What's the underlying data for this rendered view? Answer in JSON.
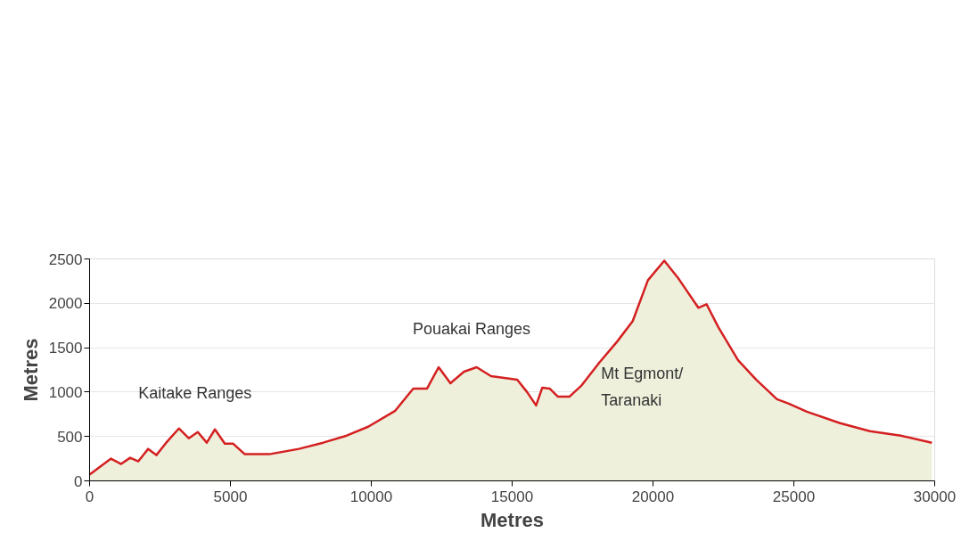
{
  "chart_data": {
    "type": "area",
    "xlabel": "Metres",
    "ylabel": "Metres",
    "x": [
      0,
      760,
      1120,
      1440,
      1730,
      2080,
      2370,
      2720,
      3170,
      3520,
      3840,
      4160,
      4450,
      4800,
      5090,
      5510,
      6370,
      7430,
      8290,
      9130,
      9890,
      10850,
      11490,
      11980,
      12390,
      12810,
      13290,
      13740,
      14250,
      15180,
      15530,
      15850,
      16070,
      16330,
      16620,
      17040,
      17450,
      18090,
      18730,
      19280,
      19820,
      20400,
      20880,
      21610,
      21900,
      22320,
      23020,
      23660,
      24400,
      24820,
      25460,
      26640,
      27700,
      28790,
      29900
    ],
    "series": [
      {
        "color": "#d42020",
        "values": [
          70,
          250,
          190,
          260,
          220,
          360,
          290,
          430,
          590,
          480,
          550,
          430,
          580,
          420,
          420,
          300,
          300,
          360,
          430,
          510,
          610,
          790,
          1040,
          1040,
          1280,
          1100,
          1230,
          1280,
          1180,
          1140,
          1000,
          850,
          1050,
          1040,
          950,
          950,
          1070,
          1330,
          1570,
          1800,
          2260,
          2480,
          2290,
          1950,
          1990,
          1730,
          1360,
          1140,
          920,
          870,
          780,
          650,
          560,
          510,
          430
        ]
      }
    ],
    "xlim": [
      0,
      30000
    ],
    "ylim": [
      0,
      2500
    ],
    "xticks": [
      0,
      5000,
      10000,
      15000,
      20000,
      25000,
      30000
    ],
    "yticks": [
      0,
      500,
      1000,
      1500,
      2000,
      2500
    ],
    "grid": "y",
    "annotations": [
      {
        "text": "Kaitake Ranges",
        "x": 3170,
        "y": 590
      },
      {
        "text": "Pouakai Ranges",
        "x": 12390,
        "y": 1280
      },
      {
        "text": "Mt Egmont/\nTaranaki",
        "x": 18090,
        "y": 1330
      }
    ]
  }
}
